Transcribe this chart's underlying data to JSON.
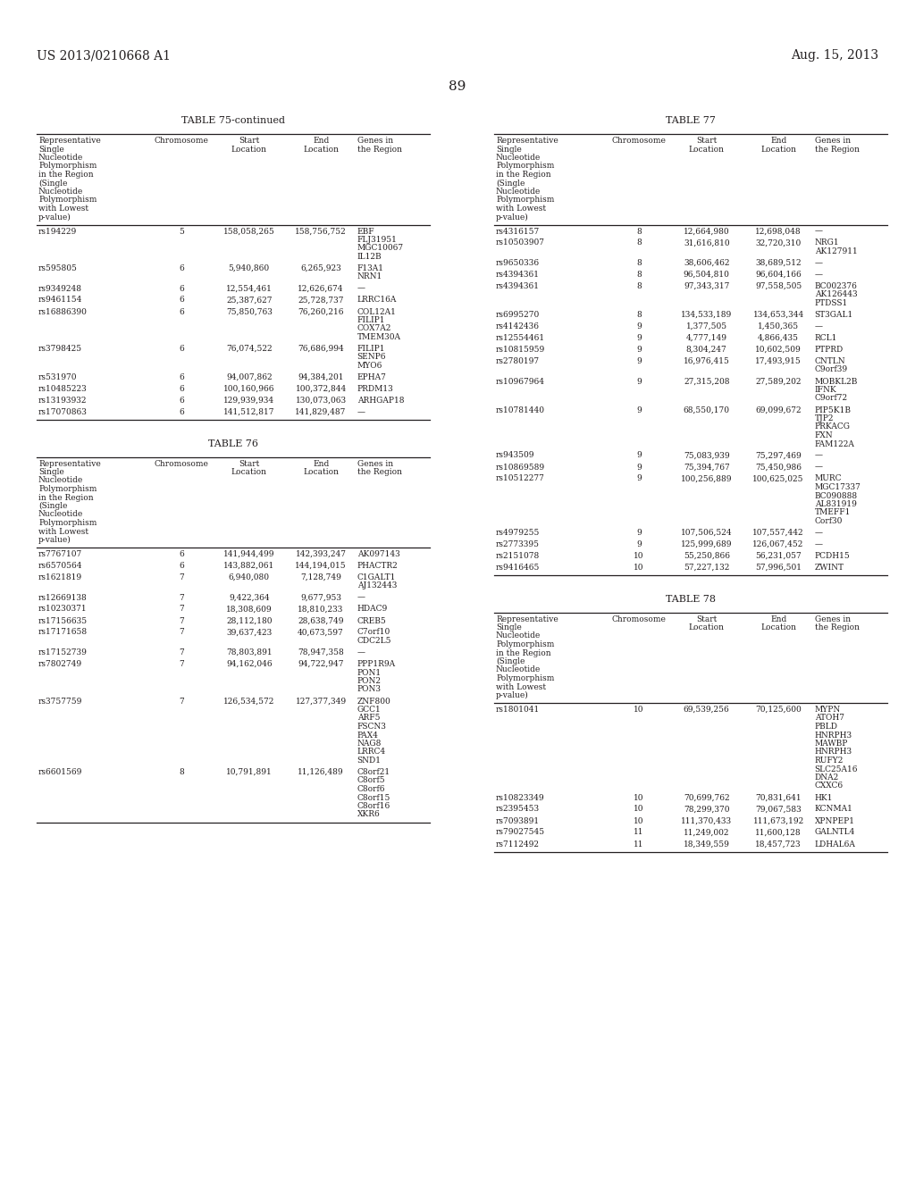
{
  "page_header_left": "US 2013/0210668 A1",
  "page_header_right": "Aug. 15, 2013",
  "page_number": "89",
  "background_color": "#ffffff",
  "text_color": "#231f20",
  "font_size": 6.5,
  "title_font_size": 8.0,
  "header_font_size": 9.0,
  "page_num_font_size": 10.0,
  "tables": [
    {
      "title": "TABLE 75-continued",
      "col": 0,
      "col_header": [
        "Representative\nSingle\nNucleotide\nPolymorphism\nin the Region\n(Single\nNucleotide\nPolymorphism\nwith Lowest\np-value)",
        "Chromosome",
        "Start\nLocation",
        "End\nLocation",
        "Genes in\nthe Region"
      ],
      "col_aligns": [
        "left",
        "center",
        "center",
        "center",
        "left"
      ],
      "rows": [
        [
          "rs194229",
          "5",
          "158,058,265",
          "158,756,752",
          "EBF\nFLJ31951\nMGC10067\nIL12B"
        ],
        [
          "rs595805",
          "6",
          "5,940,860",
          "6,265,923",
          "F13A1\nNRN1"
        ],
        [
          "rs9349248",
          "6",
          "12,554,461",
          "12,626,674",
          "—"
        ],
        [
          "rs9461154",
          "6",
          "25,387,627",
          "25,728,737",
          "LRRC16A"
        ],
        [
          "rs16886390",
          "6",
          "75,850,763",
          "76,260,216",
          "COL12A1\nFILIP1\nCOX7A2\nTMEM30A"
        ],
        [
          "rs3798425",
          "6",
          "76,074,522",
          "76,686,994",
          "FILIP1\nSENP6\nMYO6"
        ],
        [
          "rs531970",
          "6",
          "94,007,862",
          "94,384,201",
          "EPHA7"
        ],
        [
          "rs10485223",
          "6",
          "100,160,966",
          "100,372,844",
          "PRDM13"
        ],
        [
          "rs13193932",
          "6",
          "129,939,934",
          "130,073,063",
          "ARHGAP18"
        ],
        [
          "rs17070863",
          "6",
          "141,512,817",
          "141,829,487",
          "—"
        ]
      ]
    },
    {
      "title": "TABLE 76",
      "col": 0,
      "col_header": [
        "Representative\nSingle\nNucleotide\nPolymorphism\nin the Region\n(Single\nNucleotide\nPolymorphism\nwith Lowest\np-value)",
        "Chromosome",
        "Start\nLocation",
        "End\nLocation",
        "Genes in\nthe Region"
      ],
      "col_aligns": [
        "left",
        "center",
        "center",
        "center",
        "left"
      ],
      "rows": [
        [
          "rs7767107",
          "6",
          "141,944,499",
          "142,393,247",
          "AK097143"
        ],
        [
          "rs6570564",
          "6",
          "143,882,061",
          "144,194,015",
          "PHACTR2"
        ],
        [
          "rs1621819",
          "7",
          "6,940,080",
          "7,128,749",
          "C1GALT1\nAJ132443"
        ],
        [
          "rs12669138",
          "7",
          "9,422,364",
          "9,677,953",
          "—"
        ],
        [
          "rs10230371",
          "7",
          "18,308,609",
          "18,810,233",
          "HDAC9"
        ],
        [
          "rs17156635",
          "7",
          "28,112,180",
          "28,638,749",
          "CREB5"
        ],
        [
          "rs17171658",
          "7",
          "39,637,423",
          "40,673,597",
          "C7orf10\nCDC2L5"
        ],
        [
          "rs17152739",
          "7",
          "78,803,891",
          "78,947,358",
          "—"
        ],
        [
          "rs7802749",
          "7",
          "94,162,046",
          "94,722,947",
          "PPP1R9A\nPON1\nPON2\nPON3"
        ],
        [
          "rs3757759",
          "7",
          "126,534,572",
          "127,377,349",
          "ZNF800\nGCC1\nARF5\nFSCN3\nPAX4\nNAG8\nLRRC4\nSND1"
        ],
        [
          "rs6601569",
          "8",
          "10,791,891",
          "11,126,489",
          "C8orf21\nC8orf5\nC8orf6\nC8orf15\nC8orf16\nXKR6"
        ]
      ]
    },
    {
      "title": "TABLE 77",
      "col": 1,
      "col_header": [
        "Representative\nSingle\nNucleotide\nPolymorphism\nin the Region\n(Single\nNucleotide\nPolymorphism\nwith Lowest\np-value)",
        "Chromosome",
        "Start\nLocation",
        "End\nLocation",
        "Genes in\nthe Region"
      ],
      "col_aligns": [
        "left",
        "center",
        "center",
        "center",
        "left"
      ],
      "rows": [
        [
          "rs4316157",
          "8",
          "12,664,980",
          "12,698,048",
          "—"
        ],
        [
          "rs10503907",
          "8",
          "31,616,810",
          "32,720,310",
          "NRG1\nAK127911"
        ],
        [
          "rs9650336",
          "8",
          "38,606,462",
          "38,689,512",
          "—"
        ],
        [
          "rs4394361",
          "8",
          "96,504,810",
          "96,604,166",
          "—"
        ],
        [
          "rs4394361",
          "8",
          "97,343,317",
          "97,558,505",
          "BC002376\nAK126443\nPTDSS1"
        ],
        [
          "rs6995270",
          "8",
          "134,533,189",
          "134,653,344",
          "ST3GAL1"
        ],
        [
          "rs4142436",
          "9",
          "1,377,505",
          "1,450,365",
          "—"
        ],
        [
          "rs12554461",
          "9",
          "4,777,149",
          "4,866,435",
          "RCL1"
        ],
        [
          "rs10815959",
          "9",
          "8,304,247",
          "10,602,509",
          "PTPRD"
        ],
        [
          "rs2780197",
          "9",
          "16,976,415",
          "17,493,915",
          "CNTLN\nC9orf39"
        ],
        [
          "rs10967964",
          "9",
          "27,315,208",
          "27,589,202",
          "MOBKL2B\nIFNK\nC9orf72"
        ],
        [
          "rs10781440",
          "9",
          "68,550,170",
          "69,099,672",
          "PIP5K1B\nTJP2\nPRKACG\nFXN\nFAM122A"
        ],
        [
          "rs943509",
          "9",
          "75,083,939",
          "75,297,469",
          "—"
        ],
        [
          "rs10869589",
          "9",
          "75,394,767",
          "75,450,986",
          "—"
        ],
        [
          "rs10512277",
          "9",
          "100,256,889",
          "100,625,025",
          "MURC\nMGC17337\nBC090888\nAL831919\nTMEFF1\nCorf30"
        ],
        [
          "rs4979255",
          "9",
          "107,506,524",
          "107,557,442",
          "—"
        ],
        [
          "rs2773395",
          "9",
          "125,999,689",
          "126,067,452",
          "—"
        ],
        [
          "rs2151078",
          "10",
          "55,250,866",
          "56,231,057",
          "PCDH15"
        ],
        [
          "rs9416465",
          "10",
          "57,227,132",
          "57,996,501",
          "ZWINT"
        ]
      ]
    },
    {
      "title": "TABLE 78",
      "col": 1,
      "col_header": [
        "Representative\nSingle\nNucleotide\nPolymorphism\nin the Region\n(Single\nNucleotide\nPolymorphism\nwith Lowest\np-value)",
        "Chromosome",
        "Start\nLocation",
        "End\nLocation",
        "Genes in\nthe Region"
      ],
      "col_aligns": [
        "left",
        "center",
        "center",
        "center",
        "left"
      ],
      "rows": [
        [
          "rs1801041",
          "10",
          "69,539,256",
          "70,125,600",
          "MYPN\nATOH7\nPBLD\nHNRPH3\nMAWBP\nHNRPH3\nRUFY2\nSLC25A16\nDNA2\nCXXC6"
        ],
        [
          "rs10823349",
          "10",
          "70,699,762",
          "70,831,641",
          "HK1"
        ],
        [
          "rs2395453",
          "10",
          "78,299,370",
          "79,067,583",
          "KCNMA1"
        ],
        [
          "rs7093891",
          "10",
          "111,370,433",
          "111,673,192",
          "XPNPEP1"
        ],
        [
          "rs79027545",
          "11",
          "11,249,002",
          "11,600,128",
          "GALNTL4"
        ],
        [
          "rs7112492",
          "11",
          "18,349,559",
          "18,457,723",
          "LDHAL6A"
        ]
      ]
    }
  ]
}
